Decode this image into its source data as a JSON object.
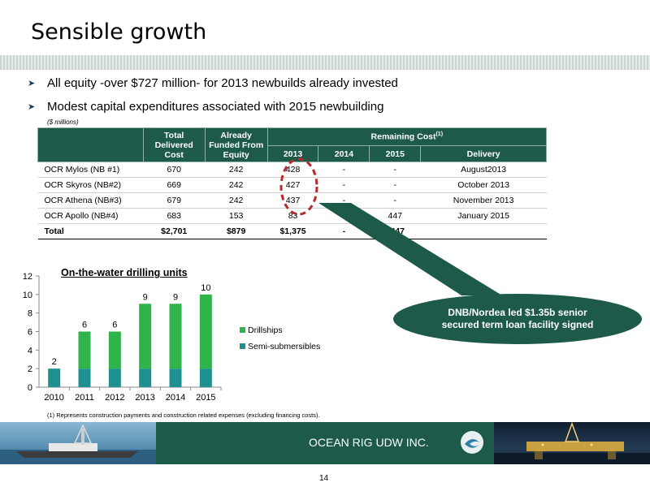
{
  "page": {
    "title": "Sensible growth",
    "bullets": [
      "All equity -over $727 million- for 2013 newbuilds already invested",
      "Modest capital expenditures associated with  2015 newbuilding"
    ],
    "units_note": "($ millions)",
    "footnote": "(1) Represents construction payments and construction related expenses (excluding  financing costs).",
    "company": "OCEAN RIG UDW INC.",
    "page_number": "14"
  },
  "table": {
    "headers": {
      "total_delivered_cost": "Total Delivered Cost",
      "already_funded": "Already Funded From Equity",
      "remaining_cost": "Remaining Cost",
      "remaining_sup": "(1)",
      "y2013": "2013",
      "y2014": "2014",
      "y2015": "2015",
      "delivery": "Delivery"
    },
    "rows": [
      {
        "name": "OCR Mylos (NB #1)",
        "total": "670",
        "funded": "242",
        "r2013": "428",
        "r2014": "-",
        "r2015": "-",
        "delivery": "August2013"
      },
      {
        "name": "OCR Skyros (NB#2)",
        "total": "669",
        "funded": "242",
        "r2013": "427",
        "r2014": "-",
        "r2015": "-",
        "delivery": "October 2013"
      },
      {
        "name": "OCR Athena (NB#3)",
        "total": "679",
        "funded": "242",
        "r2013": "437",
        "r2014": "-",
        "r2015": "-",
        "delivery": "November 2013"
      },
      {
        "name": "OCR Apollo (NB#4)",
        "total": "683",
        "funded": "153",
        "r2013": "83",
        "r2014": "",
        "r2015": "447",
        "delivery": "January 2015"
      }
    ],
    "total_row": {
      "name": "Total",
      "total": "$2,701",
      "funded": "$879",
      "r2013": "$1,375",
      "r2014": "-",
      "r2015": "$447",
      "delivery": ""
    }
  },
  "callout": {
    "line1": "DNB/Nordea led $1.35b senior",
    "line2": "secured term loan facility signed"
  },
  "colors": {
    "brand_green": "#1d5a4a",
    "drillships": "#2fb34a",
    "semi_submersibles": "#1f8f8f",
    "callout_circle": "#b52a2a"
  },
  "chart_data": {
    "type": "bar",
    "title": "On-the-water drilling units",
    "categories": [
      "2010",
      "2011",
      "2012",
      "2013",
      "2014",
      "2015"
    ],
    "series": [
      {
        "name": "Semi-submersibles",
        "values": [
          2,
          2,
          2,
          2,
          2,
          2
        ]
      },
      {
        "name": "Drillships",
        "values": [
          0,
          4,
          4,
          7,
          7,
          8
        ]
      }
    ],
    "totals": [
      2,
      6,
      6,
      9,
      9,
      10
    ],
    "ylim": [
      0,
      12
    ],
    "yticks": [
      0,
      2,
      4,
      6,
      8,
      10,
      12
    ],
    "legend_placement": "right",
    "stacked": true
  }
}
